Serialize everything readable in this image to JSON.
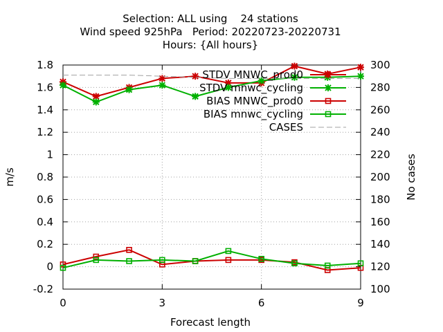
{
  "chart_data": {
    "type": "line",
    "title_lines": [
      "Selection: ALL using    24 stations",
      "Wind speed 925hPa   Period: 20220723-20220731",
      "Hours: {All hours}"
    ],
    "xlabel": "Forecast length",
    "ylabel": "m/s",
    "y2label": "No cases",
    "xlim": [
      0,
      9
    ],
    "ylim": [
      -0.2,
      1.8
    ],
    "y2lim": [
      100,
      300
    ],
    "x_ticks": [
      0,
      3,
      6,
      9
    ],
    "y_ticks": [
      -0.2,
      0,
      0.2,
      0.4,
      0.6,
      0.8,
      1,
      1.2,
      1.4,
      1.6,
      1.8
    ],
    "y_tick_labels": [
      "-0.2",
      "0",
      "0.2",
      "0.4",
      "0.6",
      "0.8",
      "1",
      "1.2",
      "1.4",
      "1.6",
      "1.8"
    ],
    "y2_ticks": [
      100,
      120,
      140,
      160,
      180,
      200,
      220,
      240,
      260,
      280,
      300
    ],
    "grid": true,
    "legend_position": "top-right",
    "x": [
      0,
      1,
      2,
      3,
      4,
      5,
      6,
      7,
      8,
      9
    ],
    "series": [
      {
        "name": "STDV MNWC_prod0",
        "color": "#cc0000",
        "marker": "x",
        "axis": "y",
        "values": [
          1.65,
          1.52,
          1.6,
          1.68,
          1.7,
          1.64,
          1.64,
          1.79,
          1.72,
          1.78
        ]
      },
      {
        "name": "STDV mnwc_cycling",
        "color": "#00b000",
        "marker": "x",
        "axis": "y",
        "values": [
          1.62,
          1.47,
          1.58,
          1.62,
          1.52,
          1.6,
          1.66,
          1.69,
          1.69,
          1.7
        ]
      },
      {
        "name": "BIAS MNWC_prod0",
        "color": "#cc0000",
        "marker": "square",
        "axis": "y",
        "values": [
          0.02,
          0.09,
          0.15,
          0.02,
          0.05,
          0.06,
          0.06,
          0.04,
          -0.03,
          -0.01
        ]
      },
      {
        "name": "BIAS mnwc_cycling",
        "color": "#00b000",
        "marker": "square",
        "axis": "y",
        "values": [
          -0.01,
          0.06,
          0.05,
          0.06,
          0.05,
          0.14,
          0.07,
          0.03,
          0.01,
          0.03
        ]
      },
      {
        "name": "CASES",
        "color": "#a0a0a0",
        "marker": "none",
        "dashed": true,
        "axis": "y2",
        "values": [
          291,
          291,
          291,
          290,
          289,
          288,
          288,
          288,
          288,
          288
        ]
      }
    ]
  }
}
